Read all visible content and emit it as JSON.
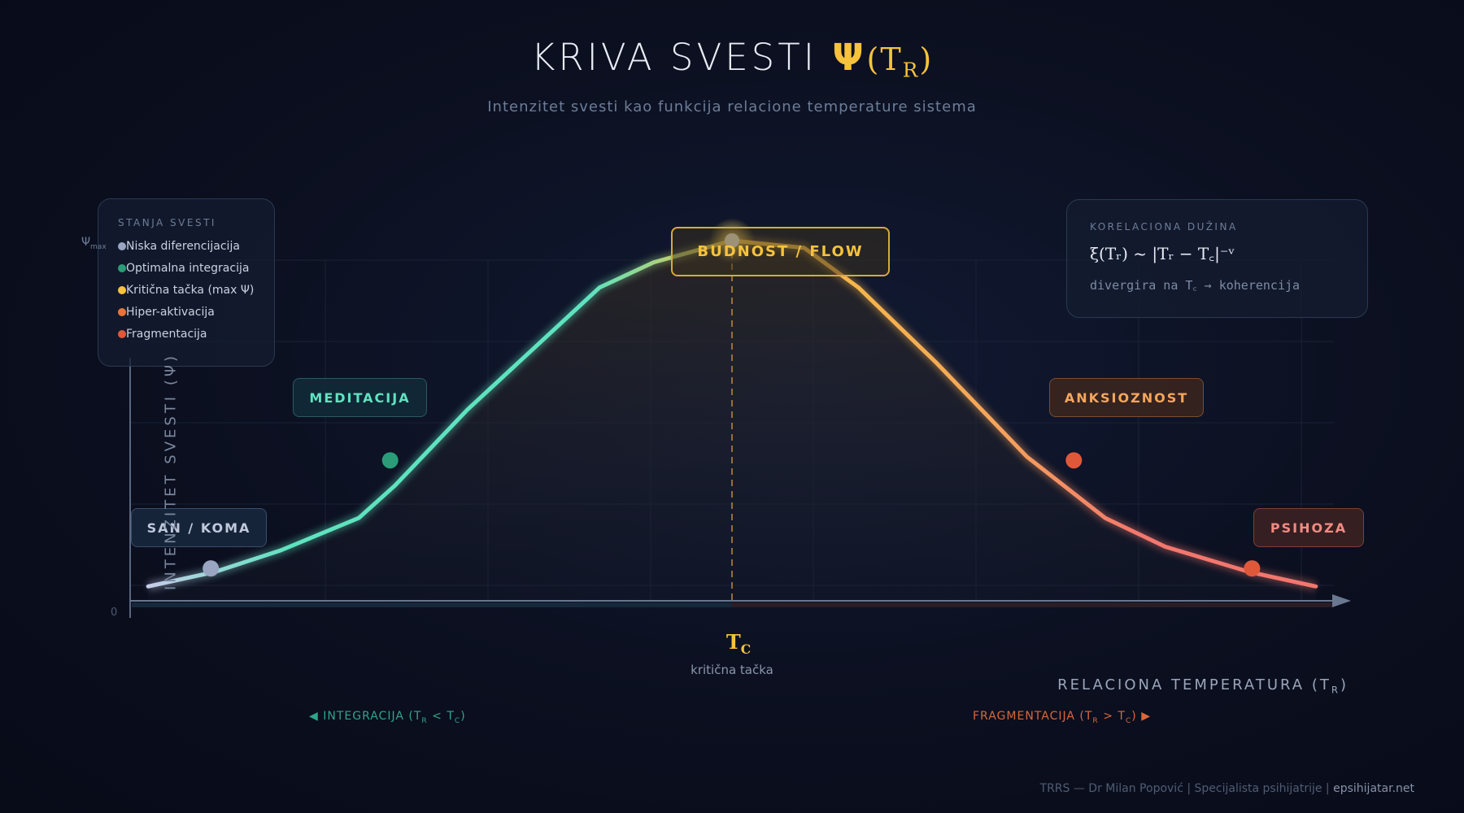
{
  "title": {
    "main": "KRIVA SVESTI",
    "psi": "Ψ",
    "arg_open": "(T",
    "arg_sub": "R",
    "arg_close": ")"
  },
  "subtitle": "Intenzitet svesti kao funkcija relacione temperature sistema",
  "legend": {
    "heading": "STANJA SVESTI",
    "items": [
      {
        "label": "Niska diferencijacija",
        "color": "#9aa5c2"
      },
      {
        "label": "Optimalna integracija",
        "color": "#2a9d78"
      },
      {
        "label": "Kritična tačka (max Ψ)",
        "color": "#f7c23c"
      },
      {
        "label": "Hiper-aktivacija",
        "color": "#e8743a"
      },
      {
        "label": "Fragmentacija",
        "color": "#e0583a"
      }
    ]
  },
  "correlation": {
    "heading": "KORELACIONA DUŽINA",
    "formula": "ξ(Tᵣ) ~ |Tᵣ − T꜀|⁻ᵛ",
    "note": "divergira na T꜀ → koherencija"
  },
  "states": {
    "san": "SAN / KOMA",
    "meditacija": "MEDITACIJA",
    "flow": "BUDNOST / FLOW",
    "anksioznost": "ANKSIOZNOST",
    "psihoza": "PSIHOZA"
  },
  "axes": {
    "ylabel": "INTENZITET SVESTI (Ψ)",
    "ymax": "Ψ",
    "ymax_sub": "max",
    "zero": "0",
    "xlabel": "RELACIONA TEMPERATURA (T",
    "xlabel_sub": "R",
    "xlabel_close": ")",
    "tc": "T",
    "tc_sub": "C",
    "tc_caption": "kritična tačka"
  },
  "regions": {
    "integ": "◀ INTEGRACIJA (T",
    "integ_s1": "R",
    "integ_mid": " < T",
    "integ_s2": "C",
    "integ_end": ")",
    "frag": "FRAGMENTACIJA (T",
    "frag_s1": "R",
    "frag_mid": " > T",
    "frag_s2": "C",
    "frag_end": ") ▶"
  },
  "footer": {
    "text": "TRRS — Dr Milan Popović | Specijalista psihijatrije | ",
    "site": "epsihijatar.net"
  },
  "chart_data": {
    "type": "line",
    "title": "KRIVA SVESTI Ψ(T_R)",
    "xlabel": "Relaciona temperatura (T_R)",
    "ylabel": "Intenzitet svesti (Ψ)",
    "xlim": [
      0,
      10
    ],
    "ylim": [
      0,
      1
    ],
    "tc": 5,
    "x": [
      0.15,
      0.7,
      1.25,
      1.9,
      2.2,
      2.8,
      3.9,
      4.35,
      5,
      5.6,
      6.05,
      6.7,
      7.45,
      8.1,
      8.6,
      9.3,
      9.85
    ],
    "y": [
      0.04,
      0.08,
      0.14,
      0.23,
      0.32,
      0.53,
      0.87,
      0.94,
      1.0,
      0.98,
      0.87,
      0.66,
      0.4,
      0.23,
      0.15,
      0.08,
      0.04
    ],
    "markers": [
      {
        "state": "SAN / KOMA",
        "x": 0.67,
        "y": 0.09,
        "color": "#9aa5c2"
      },
      {
        "state": "MEDITACIJA",
        "x": 2.16,
        "y": 0.39,
        "color": "#2a9d78"
      },
      {
        "state": "BUDNOST / FLOW",
        "x": 5,
        "y": 1.0,
        "color": "#f7c23c"
      },
      {
        "state": "ANKSIOZNOST",
        "x": 7.84,
        "y": 0.39,
        "color": "#e0583a"
      },
      {
        "state": "PSIHOZA",
        "x": 9.32,
        "y": 0.09,
        "color": "#e0583a"
      }
    ]
  }
}
